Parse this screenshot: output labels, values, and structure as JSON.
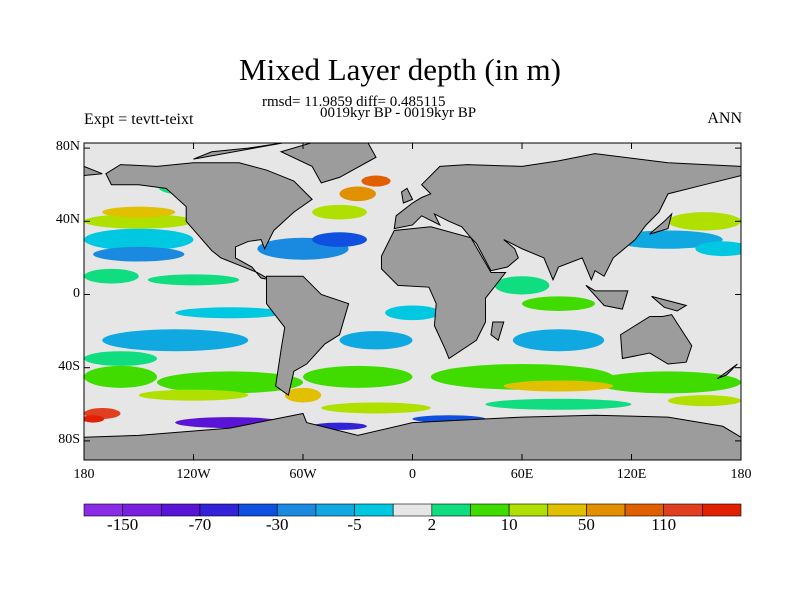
{
  "title": "Mixed Layer depth (in m)",
  "subtitle_stats": "rmsd= 11.9859 diff= 0.485115",
  "subtitle_period": "0019kyr BP - 0019kyr BP",
  "left_label": "Expt = tevtt-teixt",
  "right_label": "ANN",
  "lat_ticks": [
    {
      "label": "80N",
      "lat": 80
    },
    {
      "label": "40N",
      "lat": 40
    },
    {
      "label": "0",
      "lat": 0
    },
    {
      "label": "40S",
      "lat": -40
    },
    {
      "label": "80S",
      "lat": -80
    }
  ],
  "lon_ticks": [
    {
      "label": "180",
      "lon": -180
    },
    {
      "label": "120W",
      "lon": -120
    },
    {
      "label": "60W",
      "lon": -60
    },
    {
      "label": "0",
      "lon": 0
    },
    {
      "label": "60E",
      "lon": 60
    },
    {
      "label": "120E",
      "lon": 120
    },
    {
      "label": "180",
      "lon": 180
    }
  ],
  "colorbar": {
    "colors": [
      "#8a2be6",
      "#7a1fe0",
      "#5a14d6",
      "#3222d8",
      "#1050e0",
      "#1a8ae0",
      "#10a8e0",
      "#00c8e0",
      "#e6e6e6",
      "#10dc80",
      "#40dc00",
      "#b0e000",
      "#e0c000",
      "#e09000",
      "#e06000",
      "#e04020",
      "#e02000"
    ],
    "labels": [
      {
        "text": "-150",
        "boundary": 1
      },
      {
        "text": "-70",
        "boundary": 3
      },
      {
        "text": "-30",
        "boundary": 5
      },
      {
        "text": "-5",
        "boundary": 7
      },
      {
        "text": "2",
        "boundary": 9
      },
      {
        "text": "10",
        "boundary": 11
      },
      {
        "text": "50",
        "boundary": 13
      },
      {
        "text": "110",
        "boundary": 15
      }
    ]
  },
  "land_color": "#9c9c9c",
  "missing_color": "#e6e6e6"
}
